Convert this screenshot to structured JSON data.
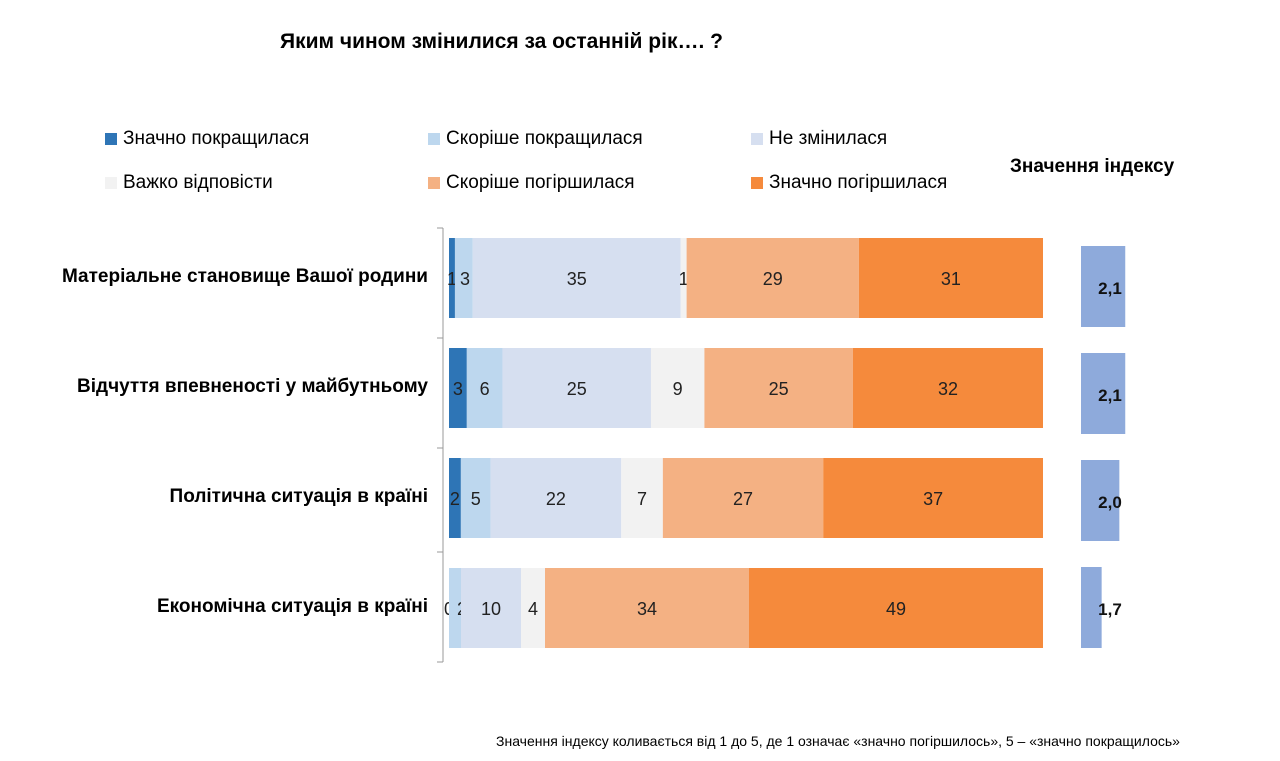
{
  "chart_data": {
    "type": "bar",
    "orientation": "horizontal",
    "stacked": true,
    "title": "Яким чином змінилися за останній рік…. ?",
    "categories": [
      "Матеріальне становище Вашої родини",
      "Відчуття впевненості у майбутньому",
      "Політична ситуація в країні",
      "Економічна ситуація в країні"
    ],
    "series": [
      {
        "name": "Значно покращилася",
        "color": "#2e75b6",
        "values": [
          1,
          3,
          2,
          0
        ]
      },
      {
        "name": "Скоріше покращилася",
        "color": "#bdd7ee",
        "values": [
          3,
          6,
          5,
          2
        ]
      },
      {
        "name": "Не змінилася",
        "color": "#d6dff0",
        "values": [
          35,
          25,
          22,
          10
        ]
      },
      {
        "name": "Важко відповісти",
        "color": "#f2f2f2",
        "values": [
          1,
          9,
          7,
          4
        ]
      },
      {
        "name": "Скоріше погіршилася",
        "color": "#f4b183",
        "values": [
          29,
          25,
          27,
          34
        ]
      },
      {
        "name": "Значно погіршилася",
        "color": "#f58a3c",
        "values": [
          31,
          32,
          37,
          49
        ]
      }
    ],
    "legend_position": "top",
    "index": {
      "title": "Значення індексу",
      "values": [
        "2,1",
        "2,1",
        "2,0",
        "1,7"
      ],
      "numeric": [
        2.1,
        2.1,
        2.0,
        1.7
      ],
      "color": "#8eaadb"
    },
    "footnote": "Значення індексу коливається від 1 до 5, де 1 означає «значно погіршилось», 5 – «значно покращилось»"
  }
}
